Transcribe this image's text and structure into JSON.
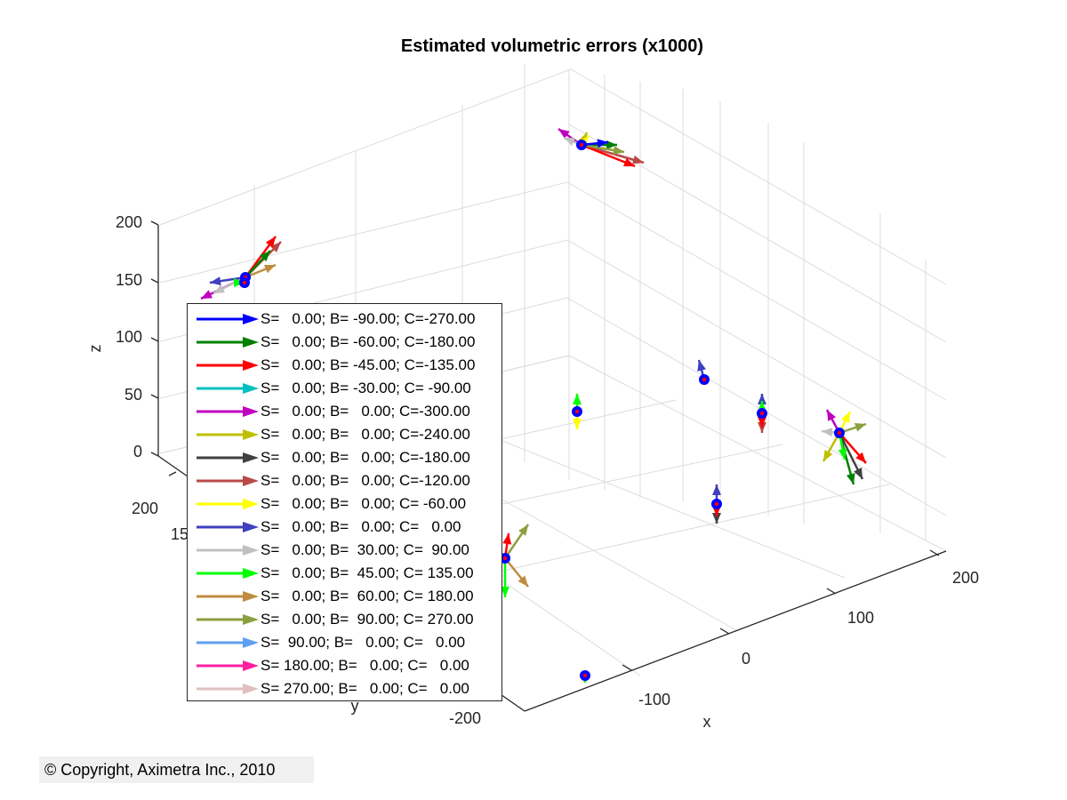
{
  "chart_data": {
    "type": "scatter",
    "title": "Estimated volumetric errors (x1000)",
    "xlabel": "x",
    "ylabel": "y",
    "zlabel": "z",
    "xlim": [
      -200,
      200
    ],
    "ylim": [
      -200,
      200
    ],
    "zlim": [
      0,
      200
    ],
    "x_ticks": [
      "-100",
      "0",
      "100",
      "200"
    ],
    "y_ticks": [
      "-200",
      "150",
      "200"
    ],
    "z_ticks": [
      "0",
      "50",
      "100",
      "150",
      "200"
    ],
    "grid": true,
    "legend_position": "inside-left",
    "series": [
      {
        "name": "S=   0.00; B= -90.00; C=-270.00",
        "color": "#0000ff"
      },
      {
        "name": "S=   0.00; B= -60.00; C=-180.00",
        "color": "#008000"
      },
      {
        "name": "S=   0.00; B= -45.00; C=-135.00",
        "color": "#ff0000"
      },
      {
        "name": "S=   0.00; B= -30.00; C= -90.00",
        "color": "#00bfbf"
      },
      {
        "name": "S=   0.00; B=   0.00; C=-300.00",
        "color": "#bf00bf"
      },
      {
        "name": "S=   0.00; B=   0.00; C=-240.00",
        "color": "#bfbf00"
      },
      {
        "name": "S=   0.00; B=   0.00; C=-180.00",
        "color": "#404040"
      },
      {
        "name": "S=   0.00; B=   0.00; C=-120.00",
        "color": "#b94a48"
      },
      {
        "name": "S=   0.00; B=   0.00; C= -60.00",
        "color": "#ffff00"
      },
      {
        "name": "S=   0.00; B=   0.00; C=   0.00",
        "color": "#3f3fbf"
      },
      {
        "name": "S=   0.00; B=  30.00; C=  90.00",
        "color": "#c0c0c0"
      },
      {
        "name": "S=   0.00; B=  45.00; C= 135.00",
        "color": "#00ff00"
      },
      {
        "name": "S=   0.00; B=  60.00; C= 180.00",
        "color": "#bf8c3f"
      },
      {
        "name": "S=   0.00; B=  90.00; C= 270.00",
        "color": "#8c9f3f"
      },
      {
        "name": "S=  90.00; B=   0.00; C=   0.00",
        "color": "#5f9fef"
      },
      {
        "name": "S= 180.00; B=   0.00; C=   0.00",
        "color": "#ff1fa0"
      },
      {
        "name": "S= 270.00; B=   0.00; C=   0.00",
        "color": "#dfbfbf"
      }
    ]
  },
  "copyright": "© Copyright, Aximetra Inc., 2010"
}
